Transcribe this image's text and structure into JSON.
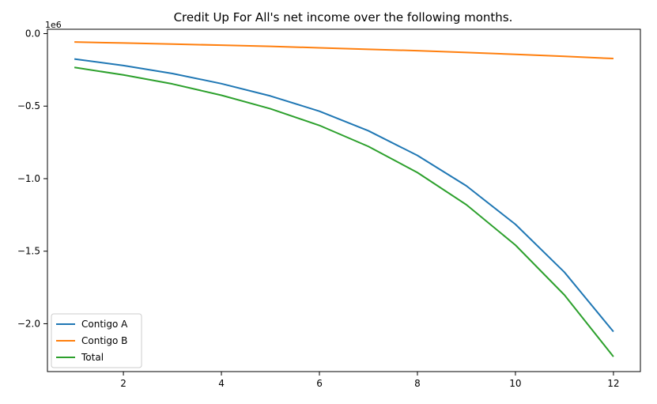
{
  "chart_data": {
    "type": "line",
    "title": "Credit Up For All's net income over the following months.",
    "xlabel": "",
    "ylabel": "",
    "y_offset_label": "1e6",
    "x": [
      1,
      2,
      3,
      4,
      5,
      6,
      7,
      8,
      9,
      10,
      11,
      12
    ],
    "xlim": [
      0.45,
      12.55
    ],
    "ylim": [
      -2.33,
      0.03
    ],
    "x_ticks": [
      2,
      4,
      6,
      8,
      10,
      12
    ],
    "x_tick_labels": [
      "2",
      "4",
      "6",
      "8",
      "10",
      "12"
    ],
    "y_ticks": [
      0.0,
      -0.5,
      -1.0,
      -1.5,
      -2.0
    ],
    "y_tick_labels": [
      "0.0",
      "−0.5",
      "−1.0",
      "−1.5",
      "−2.0"
    ],
    "grid": false,
    "legend_position": "lower-left",
    "series": [
      {
        "name": "Contigo A",
        "color": "#1f77b4",
        "values": [
          -0.175,
          -0.22,
          -0.275,
          -0.345,
          -0.43,
          -0.535,
          -0.67,
          -0.84,
          -1.05,
          -1.315,
          -1.645,
          -2.055
        ]
      },
      {
        "name": "Contigo B",
        "color": "#ff7f0e",
        "values": [
          -0.058,
          -0.065,
          -0.072,
          -0.08,
          -0.088,
          -0.098,
          -0.108,
          -0.118,
          -0.13,
          -0.143,
          -0.157,
          -0.172
        ]
      },
      {
        "name": "Total",
        "color": "#2ca02c",
        "values": [
          -0.233,
          -0.285,
          -0.347,
          -0.425,
          -0.518,
          -0.633,
          -0.778,
          -0.958,
          -1.18,
          -1.458,
          -1.802,
          -2.227
        ]
      }
    ]
  }
}
